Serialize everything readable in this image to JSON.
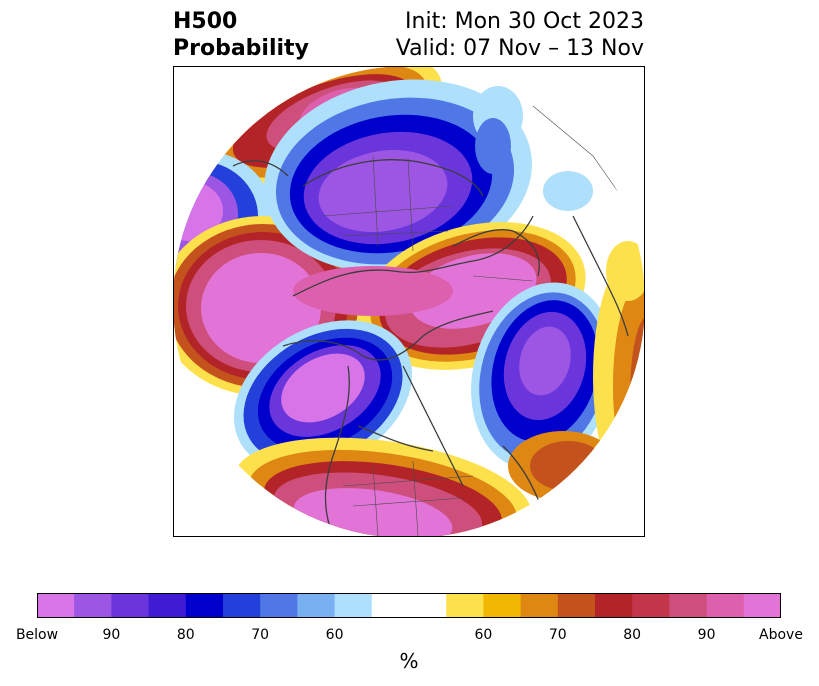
{
  "header": {
    "variable": "H500",
    "product": "Probability",
    "init": "Init: Mon 30 Oct 2023",
    "valid": "Valid: 07 Nov – 13 Nov"
  },
  "map": {
    "projection": "polar",
    "features": [
      "coastlines",
      "country-borders",
      "state-borders"
    ]
  },
  "colorbar": {
    "units": "%",
    "ticks": [
      "Below",
      "90",
      "80",
      "70",
      "60",
      "60",
      "70",
      "80",
      "90",
      "Above"
    ],
    "below_colors": [
      "#d674e8",
      "#9d55e3",
      "#6a36db",
      "#3f1bd4",
      "#0000cd",
      "#2341da",
      "#4f78e6",
      "#78b0f2",
      "#aee0fb"
    ],
    "neutral_color": "#ffffff",
    "above_colors": [
      "#fde14c",
      "#f2b700",
      "#de8713",
      "#c4521d",
      "#b22428",
      "#c3354a",
      "#ce4f7c",
      "#dc60ad",
      "#e274d8"
    ]
  },
  "colors": {
    "above_strong": "#e274d8",
    "below_strong": "#d674e8",
    "coast": "#3d3d3d"
  }
}
